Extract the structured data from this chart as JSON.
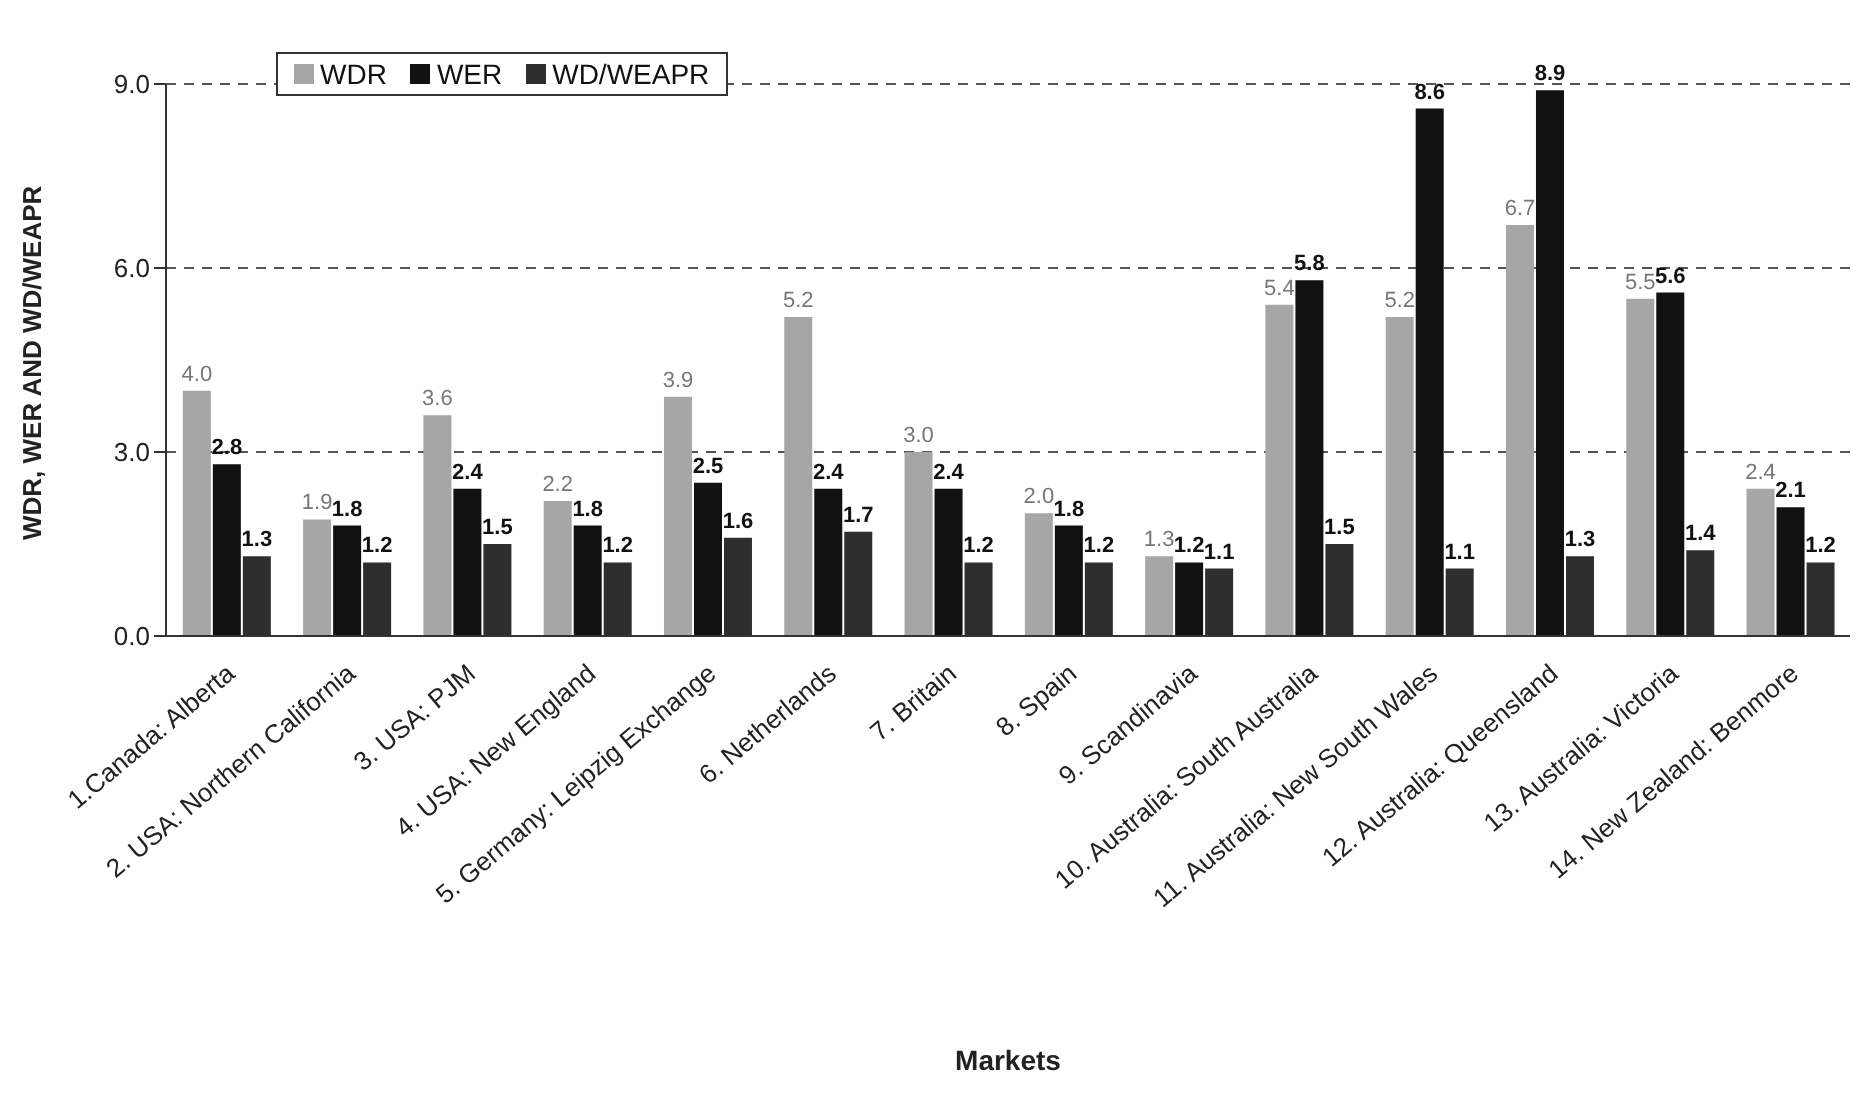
{
  "chart_data": {
    "type": "bar",
    "xlabel": "Markets",
    "ylabel": "WDR, WER AND WD/WEAPR",
    "categories": [
      "1.Canada: Alberta",
      "2. USA: Northern California",
      "3. USA: PJM",
      "4. USA: New England",
      "5. Germany: Leipzig Exchange",
      "6. Netherlands",
      "7. Britain",
      "8. Spain",
      "9. Scandinavia",
      "10. Australia: South Australia",
      "11. Australia: New South Wales",
      "12. Australia: Queensland",
      "13. Australia: Victoria",
      "14. New Zealand: Benmore"
    ],
    "series": [
      {
        "name": "WDR",
        "color": "#a6a6a6",
        "values": [
          4.0,
          1.9,
          3.6,
          2.2,
          3.9,
          5.2,
          3.0,
          2.0,
          1.3,
          5.4,
          5.2,
          6.7,
          5.5,
          2.4
        ],
        "value_labels": [
          "4.0",
          "1.9",
          "3.6",
          "2.2",
          "3.9",
          "5.2",
          "3.0",
          "2.0",
          "1.3",
          "5.4",
          "5.2",
          "6.7",
          "5.5",
          "2.4"
        ]
      },
      {
        "name": "WER",
        "color": "#111111",
        "values": [
          2.8,
          1.8,
          2.4,
          1.8,
          2.5,
          2.4,
          2.4,
          1.8,
          1.2,
          5.8,
          8.6,
          8.9,
          5.6,
          2.1
        ],
        "value_labels": [
          "2.8",
          "1.8",
          "2.4",
          "1.8",
          "2.5",
          "2.4",
          "2.4",
          "1.8",
          "1.2",
          "5.8",
          "8.6",
          "8.9",
          "5.6",
          "2.1"
        ]
      },
      {
        "name": "WD/WEAPR",
        "color": "#2e2e2e",
        "values": [
          1.3,
          1.2,
          1.5,
          1.2,
          1.6,
          1.7,
          1.2,
          1.2,
          1.1,
          1.5,
          1.1,
          1.3,
          1.4,
          1.2
        ],
        "value_labels": [
          "1.3",
          "1.2",
          "1.5",
          "1.2",
          "1.6",
          "1.7",
          "1.2",
          "1.2",
          "1.1",
          "1.5",
          "1.1",
          "1.3",
          "1.4",
          "1.2"
        ]
      }
    ],
    "ylim": [
      0,
      9
    ],
    "yticks": [
      {
        "value": 0,
        "label": "0.0"
      },
      {
        "value": 3,
        "label": "3.0"
      },
      {
        "value": 6,
        "label": "6.0"
      },
      {
        "value": 9,
        "label": "9.0"
      }
    ],
    "grid": "y",
    "legend": "top left"
  }
}
